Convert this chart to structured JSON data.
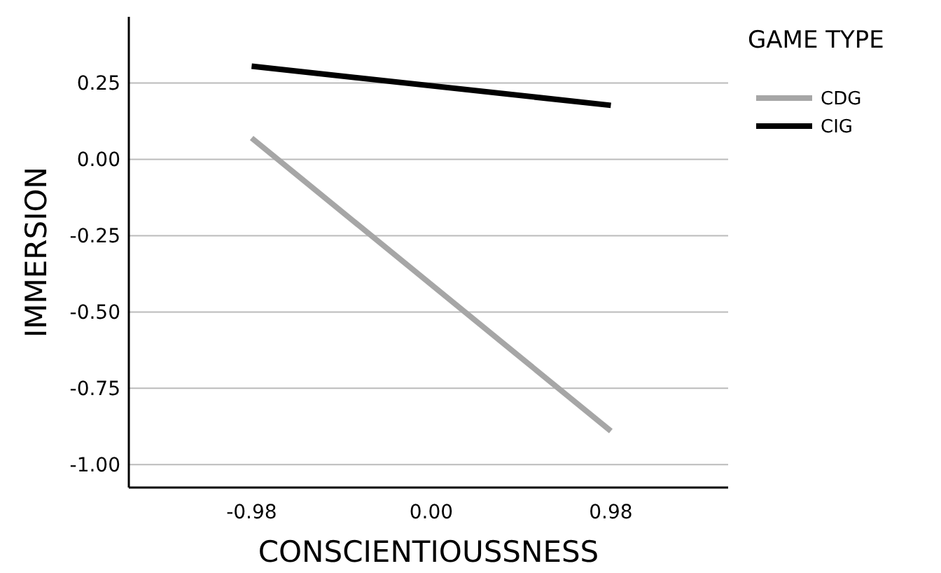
{
  "chart_data": {
    "type": "line",
    "xlabel": "CONSCIENTIOUSSNESS",
    "ylabel": "IMMERSION",
    "legend_title": "GAME TYPE",
    "x": [
      -0.98,
      0.98
    ],
    "series": [
      {
        "name": "CDG",
        "color": "#a6a6a6",
        "values": [
          0.07,
          -0.89
        ]
      },
      {
        "name": "CIG",
        "color": "#000000",
        "values": [
          0.305,
          0.177
        ]
      }
    ],
    "xlim": [
      -1.65,
      1.62
    ],
    "xticks": [
      -0.98,
      {
        "value": 0,
        "label": "0.00"
      },
      0.98
    ],
    "ylim": [
      -1.075,
      0.467
    ],
    "yticks": [
      {
        "value": -1,
        "label": "-1.00"
      },
      {
        "value": -0.75,
        "label": "-0.75"
      },
      {
        "value": -0.5,
        "label": "-0.50"
      },
      {
        "value": -0.25,
        "label": "-0.25"
      },
      {
        "value": 0,
        "label": "0.00"
      },
      {
        "value": 0.25,
        "label": "0.25"
      }
    ],
    "grid": "y",
    "legend": "top right",
    "marker": "none",
    "line_style": "solid"
  }
}
